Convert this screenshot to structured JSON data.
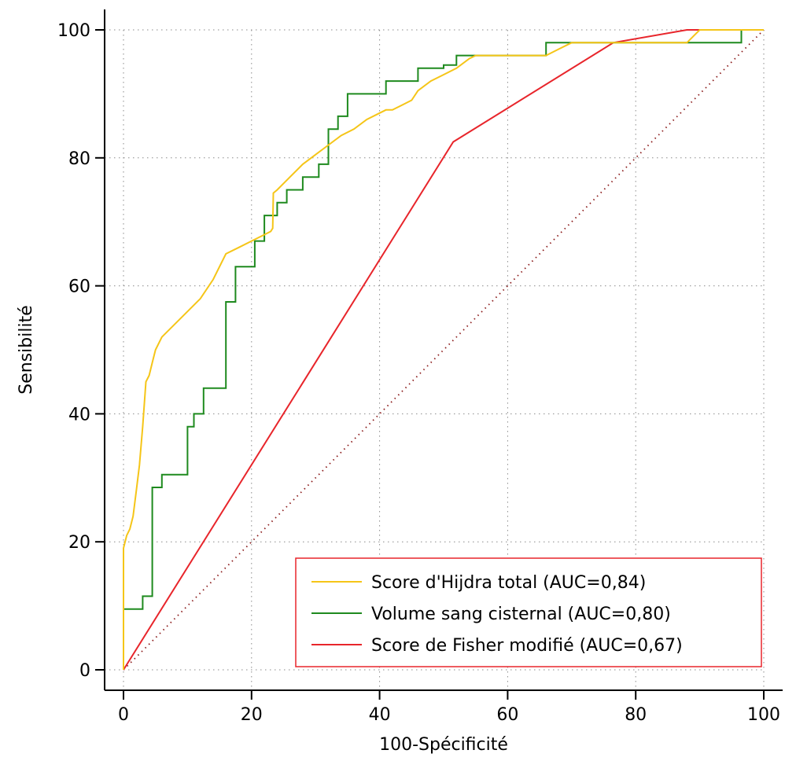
{
  "chart_data": {
    "type": "line",
    "title": "",
    "xlabel": "100-Spécificité",
    "ylabel": "Sensibilité",
    "xlim": [
      0,
      100
    ],
    "ylim": [
      0,
      100
    ],
    "xticks": [
      "0",
      "20",
      "40",
      "60",
      "80",
      "100"
    ],
    "yticks": [
      "0",
      "20",
      "40",
      "60",
      "80",
      "100"
    ],
    "grid": true,
    "legend_position": "bottom-right",
    "series": [
      {
        "name": "Score d'Hijdra total (AUC=0,84)",
        "color": "#f5c518",
        "x": [
          0,
          0,
          0,
          0,
          0.5,
          1,
          1.5,
          2,
          2.5,
          3,
          3.5,
          4,
          4.5,
          5,
          6,
          8,
          10,
          12,
          14,
          16,
          18,
          20,
          22,
          23,
          23.3,
          23.4,
          24,
          26,
          28,
          30,
          32,
          34,
          36,
          38,
          40,
          41,
          42,
          44,
          45,
          46,
          48,
          50,
          52,
          54,
          55,
          56,
          58,
          60,
          62,
          64,
          66,
          68,
          70,
          70.5,
          72,
          80,
          88,
          88.5,
          89,
          90,
          95,
          100
        ],
        "y": [
          0,
          5,
          15,
          19,
          21,
          22,
          24,
          28,
          32,
          38,
          45,
          46,
          48,
          50,
          52,
          54,
          56,
          58,
          61,
          65,
          66,
          67,
          68,
          68.5,
          69,
          74.5,
          75,
          77,
          79,
          80.5,
          82,
          83.5,
          84.5,
          86,
          87,
          87.5,
          87.5,
          88.5,
          89,
          90.5,
          92,
          93,
          94,
          95.5,
          96,
          96,
          96,
          96,
          96,
          96,
          96,
          97,
          98,
          98,
          98,
          98,
          98,
          98.5,
          99,
          100,
          100,
          100
        ]
      },
      {
        "name": "Volume  sang  cisternal (AUC=0,80)",
        "color": "#1e8a1e",
        "x": [
          0,
          0,
          3,
          3,
          4.5,
          4.5,
          6,
          6,
          10,
          10,
          11,
          11,
          12.5,
          12.5,
          16,
          16,
          17.5,
          17.5,
          20.5,
          20.5,
          22,
          22,
          24,
          24,
          25.5,
          25.5,
          28,
          28,
          30.5,
          30.5,
          32,
          32,
          33.5,
          33.5,
          35,
          35,
          41,
          41,
          42,
          42,
          46,
          46,
          50,
          50,
          52,
          52,
          54,
          54,
          56,
          56,
          66,
          66,
          96.5,
          96.5,
          100
        ],
        "y": [
          0,
          9.5,
          9.5,
          11.5,
          11.5,
          28.5,
          28.5,
          30.5,
          30.5,
          38,
          38,
          40,
          40,
          44,
          44,
          57.5,
          57.5,
          63,
          63,
          67,
          67,
          71,
          71,
          73,
          73,
          75,
          75,
          77,
          77,
          79,
          79,
          84.5,
          84.5,
          86.5,
          86.5,
          90,
          90,
          92,
          92,
          92,
          92,
          94,
          94,
          94.5,
          94.5,
          96,
          96,
          96,
          96,
          96,
          96,
          98,
          98,
          100,
          100
        ]
      },
      {
        "name": "Score de Fisher modifié (AUC=0,67)",
        "color": "#e8252b",
        "x": [
          0,
          51.5,
          76.5,
          88,
          100
        ],
        "y": [
          0,
          82.5,
          98,
          100,
          100
        ]
      },
      {
        "name": "",
        "color": "#8b1a1a",
        "dotted": true,
        "x": [
          0,
          100
        ],
        "y": [
          0,
          100
        ]
      }
    ]
  }
}
